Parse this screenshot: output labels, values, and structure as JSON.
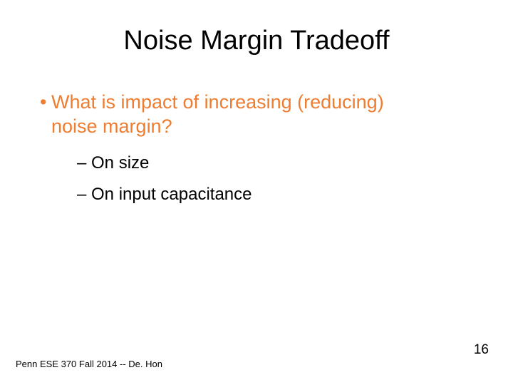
{
  "title": "Noise Margin Tradeoff",
  "bullet": {
    "text_line1": "What is impact of increasing (reducing)",
    "text_line2": "noise margin?",
    "color": "#ed7d31"
  },
  "subbullets": [
    "On size",
    "On input capacitance"
  ],
  "footer": "Penn ESE 370 Fall 2014 -- De. Hon",
  "page_number": "16",
  "colors": {
    "background": "#ffffff",
    "title": "#000000",
    "accent": "#ed7d31",
    "body": "#000000"
  },
  "fonts": {
    "title_size": 38,
    "bullet_size": 27,
    "sub_size": 24,
    "footer_size": 13,
    "pagenum_size": 19
  }
}
